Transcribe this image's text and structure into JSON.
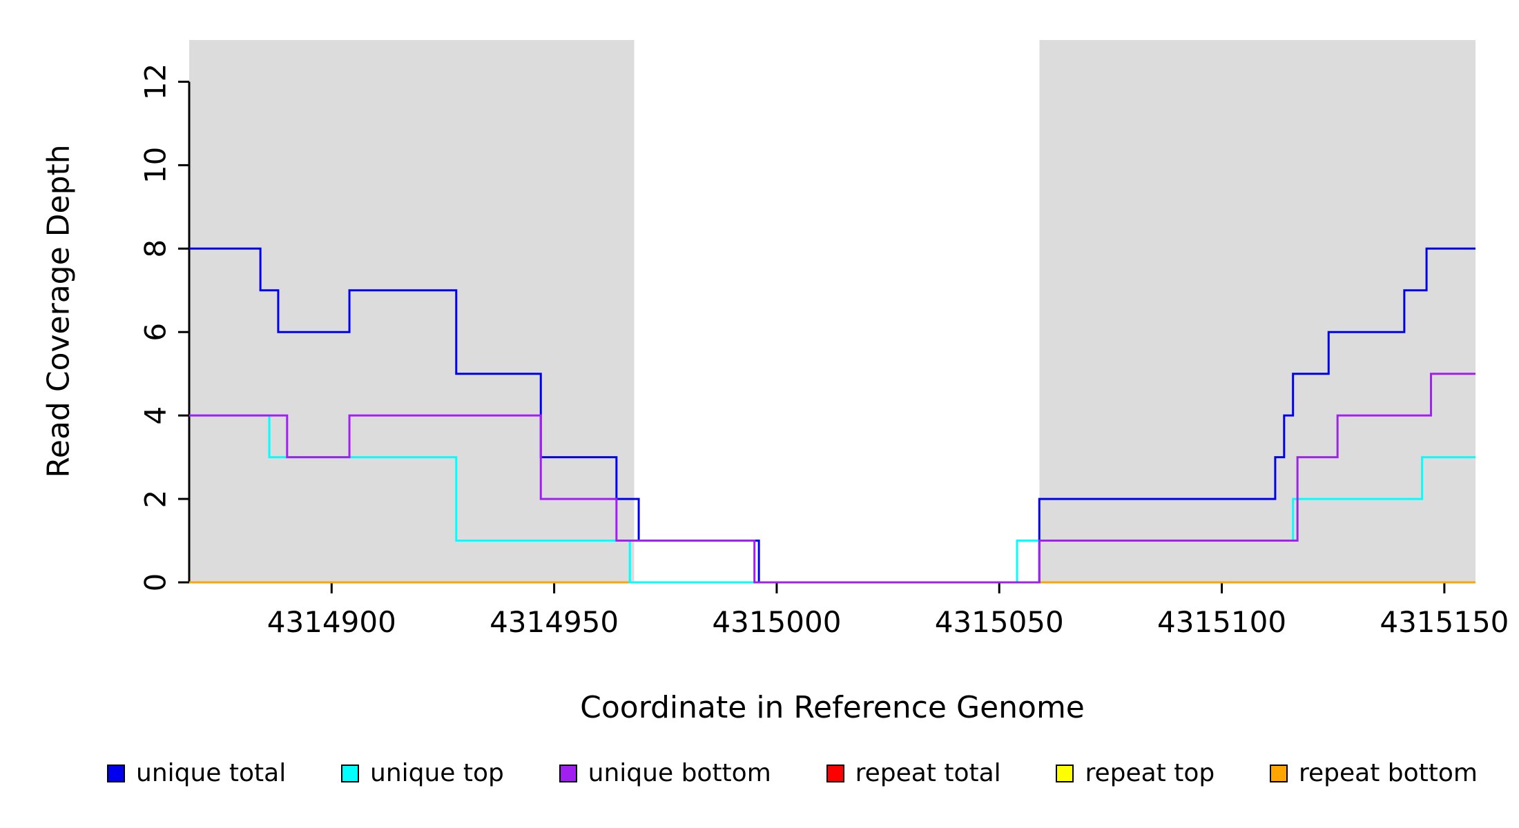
{
  "chart_data": {
    "type": "line",
    "style": "step",
    "title": "",
    "xlabel": "Coordinate in Reference Genome",
    "ylabel": "Read Coverage Depth",
    "xlim": [
      4314868,
      4315157
    ],
    "ylim": [
      0,
      13
    ],
    "x_ticks": [
      4314900,
      4314950,
      4315000,
      4315050,
      4315100,
      4315150
    ],
    "y_ticks": [
      0,
      2,
      4,
      6,
      8,
      10,
      12
    ],
    "grid": false,
    "shaded_regions": [
      {
        "name": "left-gray-region",
        "x1": 4314868,
        "x2": 4314968,
        "color": "#DCDCDC"
      },
      {
        "name": "right-gray-region",
        "x1": 4315059,
        "x2": 4315157,
        "color": "#DCDCDC"
      }
    ],
    "series": [
      {
        "name": "repeat total",
        "color": "#FF0000",
        "steps": [
          [
            4314868,
            4315157,
            0
          ]
        ]
      },
      {
        "name": "repeat top",
        "color": "#FFFF00",
        "steps": [
          [
            4314868,
            4315157,
            0
          ]
        ]
      },
      {
        "name": "repeat bottom",
        "color": "#FFA500",
        "steps": [
          [
            4314868,
            4315157,
            0
          ]
        ]
      },
      {
        "name": "unique total",
        "color": "#0000EE",
        "steps": [
          [
            4314868,
            4314884,
            8
          ],
          [
            4314884,
            4314888,
            7
          ],
          [
            4314888,
            4314904,
            6
          ],
          [
            4314904,
            4314928,
            7
          ],
          [
            4314928,
            4314947,
            5
          ],
          [
            4314947,
            4314964,
            3
          ],
          [
            4314964,
            4314969,
            2
          ],
          [
            4314969,
            4314996,
            1
          ],
          [
            4314996,
            4315059,
            0
          ],
          [
            4315059,
            4315112,
            2
          ],
          [
            4315112,
            4315114,
            3
          ],
          [
            4315114,
            4315116,
            4
          ],
          [
            4315116,
            4315124,
            5
          ],
          [
            4315124,
            4315141,
            6
          ],
          [
            4315141,
            4315146,
            7
          ],
          [
            4315146,
            4315157,
            8
          ]
        ]
      },
      {
        "name": "unique top",
        "color": "#00FFFF",
        "steps": [
          [
            4314868,
            4314886,
            4
          ],
          [
            4314886,
            4314928,
            3
          ],
          [
            4314928,
            4314967,
            1
          ],
          [
            4314967,
            4315054,
            0
          ],
          [
            4315054,
            4315116,
            1
          ],
          [
            4315116,
            4315145,
            2
          ],
          [
            4315145,
            4315157,
            3
          ]
        ]
      },
      {
        "name": "unique bottom",
        "color": "#A020F0",
        "steps": [
          [
            4314868,
            4314890,
            4
          ],
          [
            4314890,
            4314904,
            3
          ],
          [
            4314904,
            4314947,
            4
          ],
          [
            4314947,
            4314964,
            2
          ],
          [
            4314964,
            4314995,
            1
          ],
          [
            4314995,
            4315059,
            0
          ],
          [
            4315059,
            4315117,
            1
          ],
          [
            4315117,
            4315126,
            3
          ],
          [
            4315126,
            4315147,
            4
          ],
          [
            4315147,
            4315157,
            5
          ]
        ]
      }
    ]
  },
  "legend": {
    "items": [
      {
        "label": "unique total",
        "color": "#0000EE"
      },
      {
        "label": "unique top",
        "color": "#00FFFF"
      },
      {
        "label": "unique bottom",
        "color": "#A020F0"
      },
      {
        "label": "repeat total",
        "color": "#FF0000"
      },
      {
        "label": "repeat top",
        "color": "#FFFF00"
      },
      {
        "label": "repeat bottom",
        "color": "#FFA500"
      }
    ]
  }
}
